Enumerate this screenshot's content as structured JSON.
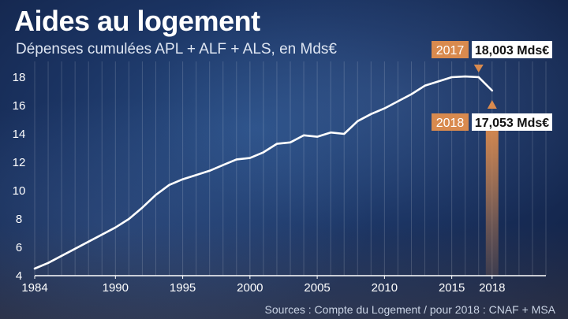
{
  "header": {
    "title": "Aides au logement",
    "subtitle": "Dépenses cumulées APL + ALF + ALS, en Mds€"
  },
  "footer": {
    "source": "Sources : Compte du Logement / pour 2018 : CNAF + MSA"
  },
  "colors": {
    "line": "#ffffff",
    "accent": "#d98a4e",
    "callout_bg": "#ffffff",
    "callout_text": "#111111"
  },
  "chart_data": {
    "type": "line",
    "x": [
      1984,
      1985,
      1986,
      1987,
      1988,
      1989,
      1990,
      1991,
      1992,
      1993,
      1994,
      1995,
      1996,
      1997,
      1998,
      1999,
      2000,
      2001,
      2002,
      2003,
      2004,
      2005,
      2006,
      2007,
      2008,
      2009,
      2010,
      2011,
      2012,
      2013,
      2014,
      2015,
      2016,
      2017,
      2018
    ],
    "series": [
      {
        "values": [
          4.5,
          4.9,
          5.4,
          5.9,
          6.4,
          6.9,
          7.4,
          8.0,
          8.8,
          9.7,
          10.4,
          10.8,
          11.1,
          11.4,
          11.8,
          12.2,
          12.3,
          12.7,
          13.3,
          13.4,
          13.9,
          13.8,
          14.1,
          14.0,
          14.9,
          15.4,
          15.8,
          16.3,
          16.8,
          17.4,
          17.7,
          18.0,
          18.05,
          18.003,
          17.053
        ]
      }
    ],
    "xticks": [
      1984,
      1990,
      1995,
      2000,
      2005,
      2010,
      2015,
      2018
    ],
    "yticks": [
      4,
      6,
      8,
      10,
      12,
      14,
      16,
      18
    ],
    "xlim": [
      1984,
      2022
    ],
    "ylim": [
      4,
      19
    ],
    "xlabel": "",
    "ylabel": "",
    "grid": "vertical",
    "annotations": [
      {
        "year_label": "2017",
        "value_label": "18,003 Mds€",
        "x": 2017,
        "y": 18.003
      },
      {
        "year_label": "2018",
        "value_label": "17,053 Mds€",
        "x": 2018,
        "y": 17.053
      }
    ]
  }
}
